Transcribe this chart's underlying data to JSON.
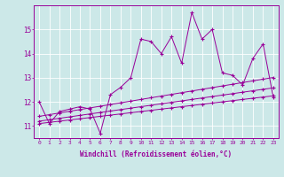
{
  "x": [
    0,
    1,
    2,
    3,
    4,
    5,
    6,
    7,
    8,
    9,
    10,
    11,
    12,
    13,
    14,
    15,
    16,
    17,
    18,
    19,
    20,
    21,
    22,
    23
  ],
  "line_main": [
    12.0,
    11.1,
    11.6,
    11.7,
    11.8,
    11.7,
    10.7,
    12.3,
    12.6,
    13.0,
    14.6,
    14.5,
    14.0,
    14.7,
    13.6,
    15.7,
    14.6,
    15.0,
    13.2,
    13.1,
    12.7,
    13.8,
    14.4,
    12.2
  ],
  "line_trend1": [
    11.1,
    11.15,
    11.2,
    11.25,
    11.3,
    11.35,
    11.4,
    11.45,
    11.5,
    11.55,
    11.6,
    11.65,
    11.7,
    11.75,
    11.8,
    11.85,
    11.9,
    11.95,
    12.0,
    12.05,
    12.1,
    12.15,
    12.2,
    12.25
  ],
  "line_trend2": [
    11.2,
    11.26,
    11.32,
    11.38,
    11.44,
    11.5,
    11.56,
    11.62,
    11.68,
    11.74,
    11.8,
    11.86,
    11.92,
    11.98,
    12.04,
    12.1,
    12.16,
    12.22,
    12.28,
    12.34,
    12.4,
    12.46,
    12.52,
    12.58
  ],
  "line_trend3": [
    11.4,
    11.47,
    11.54,
    11.61,
    11.68,
    11.75,
    11.82,
    11.89,
    11.96,
    12.03,
    12.1,
    12.17,
    12.24,
    12.31,
    12.38,
    12.45,
    12.52,
    12.59,
    12.66,
    12.73,
    12.8,
    12.87,
    12.94,
    13.01
  ],
  "line_color": "#990099",
  "bg_color": "#cce8e8",
  "grid_color": "#ffffff",
  "xlabel": "Windchill (Refroidissement éolien,°C)",
  "ylim": [
    10.5,
    16.0
  ],
  "xlim": [
    -0.5,
    23.5
  ],
  "yticks": [
    11,
    12,
    13,
    14,
    15
  ],
  "xticks": [
    0,
    1,
    2,
    3,
    4,
    5,
    6,
    7,
    8,
    9,
    10,
    11,
    12,
    13,
    14,
    15,
    16,
    17,
    18,
    19,
    20,
    21,
    22,
    23
  ]
}
